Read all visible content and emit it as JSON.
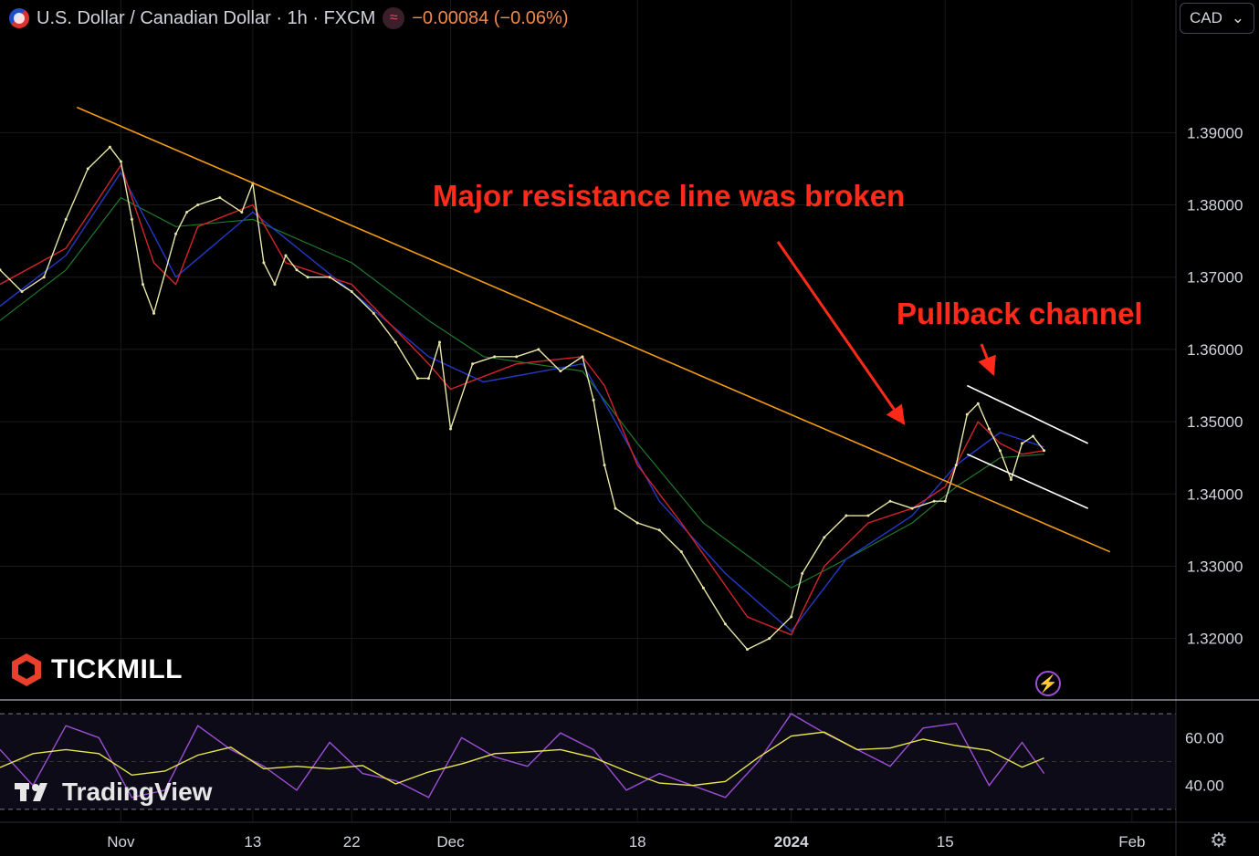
{
  "header": {
    "symbol": "U.S. Dollar / Canadian Dollar · 1h · FXCM",
    "indicator_glyph": "≈",
    "change": "−0.00084 (−0.06%)",
    "flag_icon": "us-ca-flag-icon"
  },
  "currency_selector": {
    "value": "CAD",
    "chevron": "⌄"
  },
  "branding": {
    "broker": "TICKMILL",
    "platform": "TradingView"
  },
  "annotations": {
    "resistance": "Major resistance line was broken",
    "channel": "Pullback channel"
  },
  "colors": {
    "background": "#000000",
    "price": "#e8e6a8",
    "ma_fast": "#d4242a",
    "ma_mid": "#2439c8",
    "ma_slow": "#1f7a2a",
    "trendline": "#f39c12",
    "channel": "#ffffff",
    "annotation": "#ff2a1a",
    "rsi_fast": "#9c4fd6",
    "rsi_slow": "#e6e64a",
    "grid": "#1a1a1a"
  },
  "chart_data": {
    "type": "line",
    "title": "U.S. Dollar / Canadian Dollar · 1h · FXCM",
    "y_ticks": [
      "1.39000",
      "1.38000",
      "1.37000",
      "1.36000",
      "1.35000",
      "1.34000",
      "1.33000",
      "1.32000"
    ],
    "ylim": [
      1.3115,
      1.4033
    ],
    "x_ticks": [
      "Nov",
      "13",
      "22",
      "Dec",
      "18",
      "2024",
      "15",
      "Feb"
    ],
    "x_tick_dates": [
      "2023-11-01",
      "2023-11-13",
      "2023-11-22",
      "2023-12-01",
      "2023-12-18",
      "2024-01-01",
      "2024-01-15",
      "2024-02-01"
    ],
    "xlim": [
      "2023-10-21",
      "2024-02-05"
    ],
    "series": [
      {
        "role": "price",
        "x": [
          "2023-10-21",
          "2023-10-23",
          "2023-10-25",
          "2023-10-27",
          "2023-10-29",
          "2023-10-31",
          "2023-11-01",
          "2023-11-02",
          "2023-11-03",
          "2023-11-04",
          "2023-11-06",
          "2023-11-07",
          "2023-11-08",
          "2023-11-10",
          "2023-11-12",
          "2023-11-13",
          "2023-11-14",
          "2023-11-15",
          "2023-11-16",
          "2023-11-17",
          "2023-11-18",
          "2023-11-20",
          "2023-11-22",
          "2023-11-24",
          "2023-11-26",
          "2023-11-28",
          "2023-11-29",
          "2023-11-30",
          "2023-12-01",
          "2023-12-03",
          "2023-12-05",
          "2023-12-07",
          "2023-12-09",
          "2023-12-11",
          "2023-12-13",
          "2023-12-14",
          "2023-12-15",
          "2023-12-16",
          "2023-12-18",
          "2023-12-20",
          "2023-12-22",
          "2023-12-24",
          "2023-12-26",
          "2023-12-28",
          "2023-12-30",
          "2024-01-01",
          "2024-01-02",
          "2024-01-04",
          "2024-01-06",
          "2024-01-08",
          "2024-01-10",
          "2024-01-12",
          "2024-01-14",
          "2024-01-15",
          "2024-01-16",
          "2024-01-17",
          "2024-01-18",
          "2024-01-19",
          "2024-01-20",
          "2024-01-21",
          "2024-01-22",
          "2024-01-23",
          "2024-01-24"
        ],
        "values": [
          1.371,
          1.368,
          1.37,
          1.378,
          1.385,
          1.388,
          1.386,
          1.378,
          1.369,
          1.365,
          1.376,
          1.379,
          1.38,
          1.381,
          1.379,
          1.383,
          1.372,
          1.369,
          1.373,
          1.371,
          1.37,
          1.37,
          1.368,
          1.365,
          1.361,
          1.356,
          1.356,
          1.361,
          1.349,
          1.358,
          1.359,
          1.359,
          1.36,
          1.357,
          1.359,
          1.353,
          1.344,
          1.338,
          1.336,
          1.335,
          1.332,
          1.327,
          1.322,
          1.3185,
          1.32,
          1.323,
          1.329,
          1.334,
          1.337,
          1.337,
          1.339,
          1.338,
          1.339,
          1.339,
          1.344,
          1.351,
          1.3525,
          1.349,
          1.346,
          1.342,
          1.347,
          1.348,
          1.346
        ]
      },
      {
        "role": "ma_fast",
        "x": [
          "2023-10-21",
          "2023-10-27",
          "2023-11-01",
          "2023-11-04",
          "2023-11-06",
          "2023-11-08",
          "2023-11-13",
          "2023-11-16",
          "2023-11-22",
          "2023-11-29",
          "2023-12-01",
          "2023-12-07",
          "2023-12-13",
          "2023-12-15",
          "2023-12-18",
          "2023-12-22",
          "2023-12-28",
          "2024-01-01",
          "2024-01-04",
          "2024-01-08",
          "2024-01-12",
          "2024-01-15",
          "2024-01-18",
          "2024-01-20",
          "2024-01-22",
          "2024-01-24"
        ],
        "values": [
          1.369,
          1.374,
          1.3855,
          1.372,
          1.369,
          1.377,
          1.38,
          1.372,
          1.369,
          1.358,
          1.3545,
          1.358,
          1.359,
          1.355,
          1.344,
          1.336,
          1.323,
          1.3205,
          1.33,
          1.336,
          1.338,
          1.341,
          1.35,
          1.347,
          1.3455,
          1.346
        ]
      },
      {
        "role": "ma_mid",
        "x": [
          "2023-10-21",
          "2023-10-27",
          "2023-11-01",
          "2023-11-06",
          "2023-11-13",
          "2023-11-22",
          "2023-11-29",
          "2023-12-04",
          "2023-12-13",
          "2023-12-16",
          "2023-12-20",
          "2023-12-26",
          "2024-01-01",
          "2024-01-06",
          "2024-01-12",
          "2024-01-16",
          "2024-01-20",
          "2024-01-24"
        ],
        "values": [
          1.366,
          1.373,
          1.3845,
          1.37,
          1.379,
          1.368,
          1.359,
          1.3555,
          1.358,
          1.35,
          1.339,
          1.329,
          1.321,
          1.331,
          1.337,
          1.344,
          1.3485,
          1.3465
        ]
      },
      {
        "role": "ma_slow",
        "x": [
          "2023-10-21",
          "2023-10-27",
          "2023-11-01",
          "2023-11-06",
          "2023-11-13",
          "2023-11-22",
          "2023-11-29",
          "2023-12-04",
          "2023-12-13",
          "2023-12-18",
          "2023-12-24",
          "2024-01-01",
          "2024-01-06",
          "2024-01-12",
          "2024-01-16",
          "2024-01-20",
          "2024-01-24"
        ],
        "values": [
          1.364,
          1.371,
          1.381,
          1.377,
          1.378,
          1.372,
          1.364,
          1.359,
          1.357,
          1.347,
          1.336,
          1.327,
          1.331,
          1.336,
          1.341,
          1.345,
          1.3455
        ]
      },
      {
        "role": "trendline",
        "x": [
          "2023-10-28",
          "2024-01-30"
        ],
        "values": [
          1.3935,
          1.332
        ]
      },
      {
        "role": "channel_upper",
        "x": [
          "2024-01-17",
          "2024-01-28"
        ],
        "values": [
          1.355,
          1.347
        ]
      },
      {
        "role": "channel_lower",
        "x": [
          "2024-01-17",
          "2024-01-28"
        ],
        "values": [
          1.3455,
          1.338
        ]
      }
    ],
    "rsi": {
      "y_ticks": [
        "60.00",
        "40.00"
      ],
      "ylim": [
        25,
        75
      ],
      "levels": [
        70,
        30
      ],
      "x": [
        "2023-10-21",
        "2023-10-24",
        "2023-10-27",
        "2023-10-30",
        "2023-11-02",
        "2023-11-05",
        "2023-11-08",
        "2023-11-11",
        "2023-11-14",
        "2023-11-17",
        "2023-11-20",
        "2023-11-23",
        "2023-11-26",
        "2023-11-29",
        "2023-12-02",
        "2023-12-05",
        "2023-12-08",
        "2023-12-11",
        "2023-12-14",
        "2023-12-17",
        "2023-12-20",
        "2023-12-23",
        "2023-12-26",
        "2023-12-29",
        "2024-01-01",
        "2024-01-04",
        "2024-01-07",
        "2024-01-10",
        "2024-01-13",
        "2024-01-16",
        "2024-01-19",
        "2024-01-22",
        "2024-01-24"
      ],
      "values": [
        55,
        40,
        65,
        60,
        35,
        38,
        65,
        55,
        48,
        38,
        58,
        45,
        42,
        35,
        60,
        52,
        48,
        62,
        55,
        38,
        45,
        40,
        35,
        50,
        70,
        62,
        55,
        48,
        64,
        66,
        40,
        58,
        45
      ]
    }
  }
}
